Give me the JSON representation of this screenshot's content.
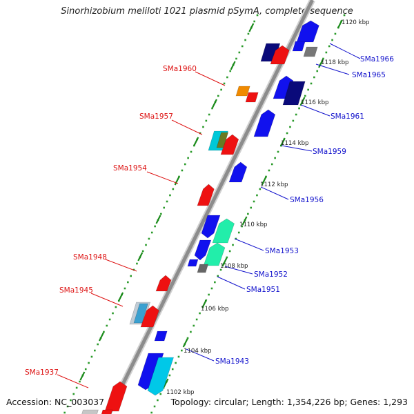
{
  "title": "Sinorhizobium meliloti 1021 plasmid pSymA, complete sequence",
  "footer": {
    "accession": "Accession: NC_003037",
    "topology": "Topology: circular; Length: 1,354,226 bp; Genes: 1,293"
  },
  "colors": {
    "backbone": "#8c8c8c",
    "ticks": "#1a8a1a",
    "label_left": "#dd1111",
    "label_right": "#1111cc",
    "tick_label": "#222222"
  },
  "kbp_ticks": [
    "1120 kbp",
    "1118 kbp",
    "1116 kbp",
    "1114 kbp",
    "1112 kbp",
    "1110 kbp",
    "1108 kbp",
    "1106 kbp",
    "1104 kbp",
    "1102 kbp"
  ],
  "left_labels": [
    "SMa1960",
    "SMa1957",
    "SMa1954",
    "SMa1948",
    "SMa1945",
    "SMa1937"
  ],
  "right_labels": [
    "SMa1966",
    "SMa1965",
    "SMa1961",
    "SMa1959",
    "SMa1956",
    "SMa1953",
    "SMa1952",
    "SMa1951",
    "SMa1943"
  ]
}
